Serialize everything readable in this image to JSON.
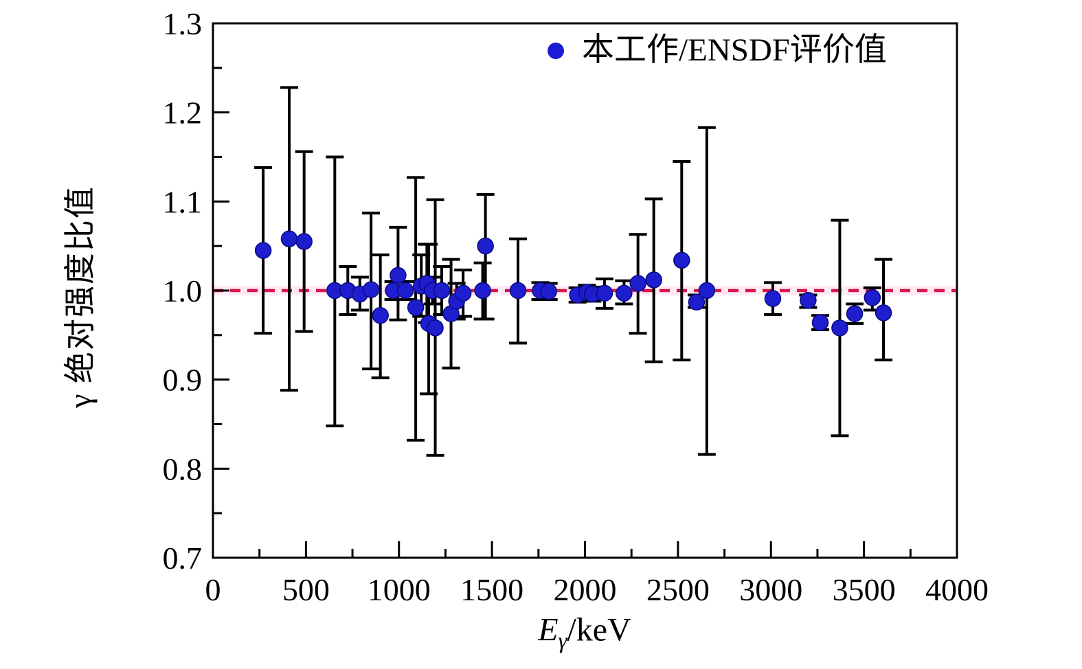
{
  "figure": {
    "background": "#ffffff",
    "axis_color": "#000000",
    "legend": {
      "label": "本工作/ENSDF评价值",
      "marker_color": "#1c1cd6"
    }
  },
  "chart_data": {
    "type": "scatter",
    "title": "",
    "xlabel": "Eγ/keV",
    "xlabel_parts": {
      "main": "E",
      "sub": "γ",
      "rest": "/keV"
    },
    "ylabel": "γ 绝对强度比值",
    "xlim": [
      0,
      4000
    ],
    "ylim": [
      0.7,
      1.3
    ],
    "x_major_ticks": [
      0,
      500,
      1000,
      1500,
      2000,
      2500,
      3000,
      3500,
      4000
    ],
    "x_tick_labels": [
      "0",
      "500",
      "1000",
      "1500",
      "2000",
      "2500",
      "3000",
      "3500",
      "4000"
    ],
    "x_minor_step": 250,
    "y_major_ticks": [
      0.7,
      0.8,
      0.9,
      1.0,
      1.1,
      1.2,
      1.3
    ],
    "y_tick_labels": [
      "0.7",
      "0.8",
      "0.9",
      "1.0",
      "1.1",
      "1.2",
      "1.3"
    ],
    "y_minor_step": 0.05,
    "grid": false,
    "legend_position": "top-right",
    "reference_line": {
      "y": 1.0,
      "style": "dashed",
      "color": "#d8174a",
      "halo_color": "#ffb9d9"
    },
    "marker": {
      "shape": "circle",
      "fill": "#1e1ecf",
      "edge": "#0a0a80",
      "radius": 11.5
    },
    "error_bar": {
      "color": "#000000",
      "cap_half_width": 13,
      "line_width": 4
    },
    "series": [
      {
        "name": "本工作/ENSDF评价值",
        "points_format": [
          "E_keV",
          "ratio",
          "err_plus",
          "err_minus"
        ],
        "points": [
          [
            270,
            1.045,
            0.093,
            0.093
          ],
          [
            410,
            1.058,
            0.17,
            0.17
          ],
          [
            490,
            1.055,
            0.101,
            0.101
          ],
          [
            655,
            1.0,
            0.15,
            0.152
          ],
          [
            725,
            1.0,
            0.027,
            0.027
          ],
          [
            790,
            0.996,
            0.019,
            0.018
          ],
          [
            850,
            1.001,
            0.086,
            0.089
          ],
          [
            900,
            0.972,
            0.068,
            0.07
          ],
          [
            970,
            1.0,
            0.01,
            0.01
          ],
          [
            995,
            1.017,
            0.054,
            0.05
          ],
          [
            1035,
            1.0,
            0.01,
            0.01
          ],
          [
            1090,
            0.981,
            0.146,
            0.149
          ],
          [
            1120,
            1.005,
            0.035,
            0.034
          ],
          [
            1150,
            1.008,
            0.044,
            0.044
          ],
          [
            1160,
            0.963,
            0.089,
            0.079
          ],
          [
            1180,
            1.0,
            0.015,
            0.015
          ],
          [
            1195,
            0.958,
            0.144,
            0.143
          ],
          [
            1230,
            1.0,
            0.027,
            0.027
          ],
          [
            1280,
            0.974,
            0.061,
            0.061
          ],
          [
            1310,
            0.988,
            0.02,
            0.02
          ],
          [
            1345,
            0.997,
            0.026,
            0.026
          ],
          [
            1450,
            1.0,
            0.031,
            0.032
          ],
          [
            1465,
            1.05,
            0.058,
            0.082
          ],
          [
            1640,
            1.0,
            0.058,
            0.059
          ],
          [
            1760,
            1.0,
            0.009,
            0.01
          ],
          [
            1805,
            0.999,
            0.009,
            0.009
          ],
          [
            1960,
            0.995,
            0.008,
            0.008
          ],
          [
            2010,
            0.998,
            0.008,
            0.008
          ],
          [
            2040,
            0.996,
            0.008,
            0.008
          ],
          [
            2105,
            0.997,
            0.016,
            0.017
          ],
          [
            2210,
            0.997,
            0.014,
            0.012
          ],
          [
            2285,
            1.008,
            0.055,
            0.056
          ],
          [
            2370,
            1.012,
            0.091,
            0.092
          ],
          [
            2520,
            1.034,
            0.111,
            0.112
          ],
          [
            2600,
            0.987,
            0.008,
            0.006
          ],
          [
            2655,
            1.0,
            0.183,
            0.184
          ],
          [
            3010,
            0.991,
            0.018,
            0.018
          ],
          [
            3200,
            0.989,
            0.006,
            0.008
          ],
          [
            3265,
            0.964,
            0.008,
            0.008
          ],
          [
            3370,
            0.958,
            0.121,
            0.121
          ],
          [
            3450,
            0.974,
            0.011,
            0.011
          ],
          [
            3545,
            0.992,
            0.011,
            0.014
          ],
          [
            3605,
            0.975,
            0.06,
            0.053
          ]
        ]
      }
    ]
  }
}
